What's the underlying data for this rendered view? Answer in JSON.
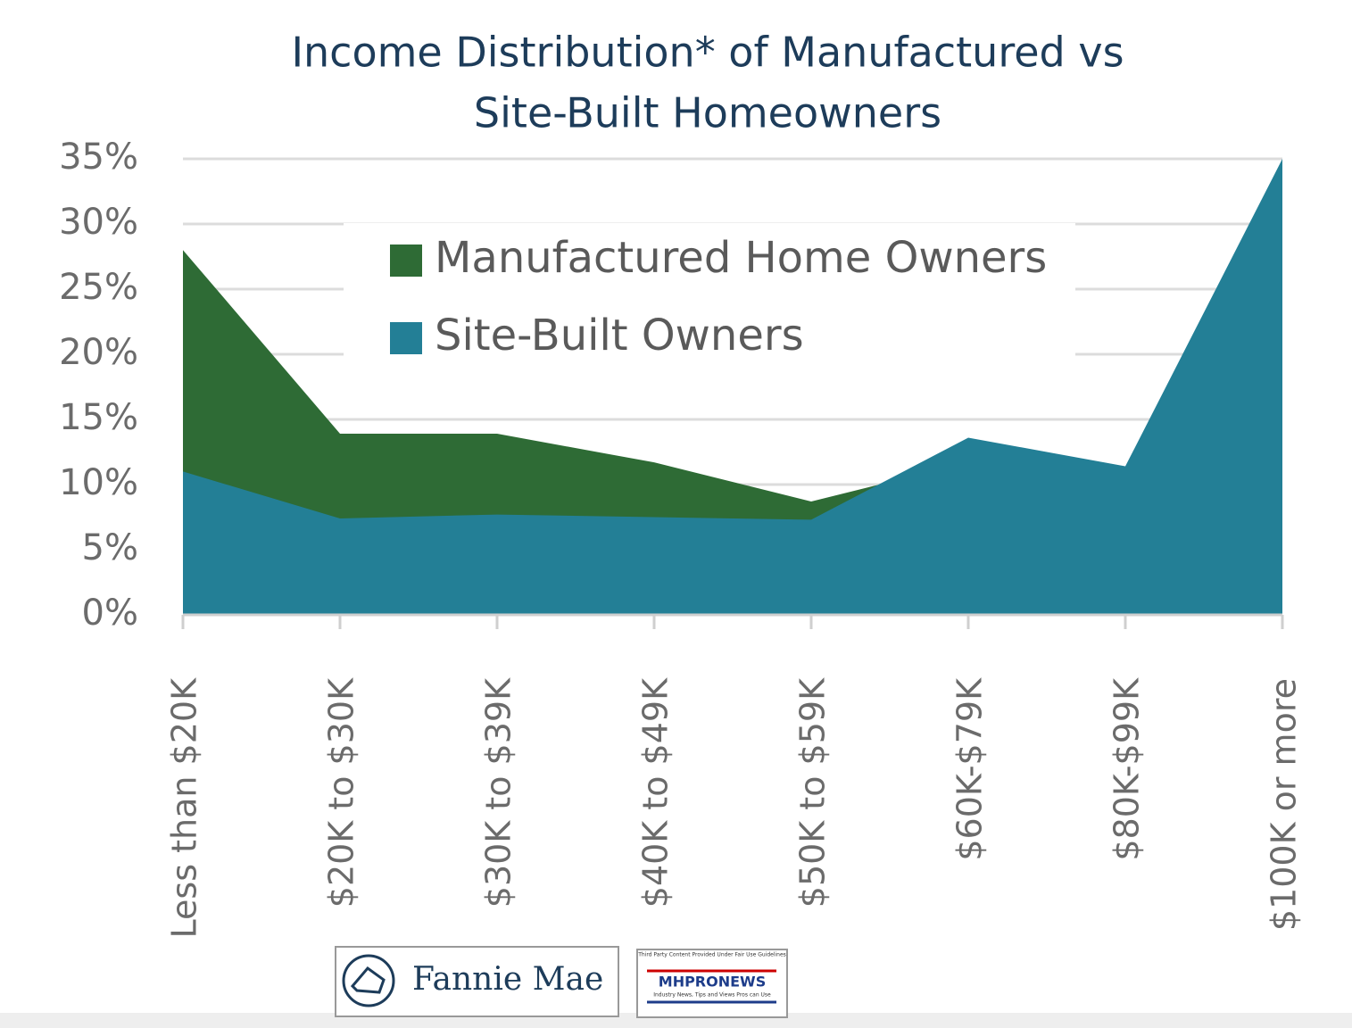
{
  "chart_data": {
    "type": "area",
    "title": [
      "Income Distribution* of Manufactured vs",
      "Site-Built Homeowners"
    ],
    "categories": [
      "Less than $20K",
      "$20K to $30K",
      "$30K to $39K",
      "$40K to $49K",
      "$50K to $59K",
      "$60K-$79K",
      "$80K-$99K",
      "$100K or more"
    ],
    "series": [
      {
        "name": "Manufactured Home Owners",
        "color": "#2e6b35",
        "values": [
          28,
          13.9,
          13.9,
          11.7,
          8.7,
          11.7,
          10,
          7.9
        ]
      },
      {
        "name": "Site-Built Owners",
        "color": "#237f96",
        "values": [
          11,
          7.4,
          7.7,
          7.5,
          7.3,
          13.6,
          11.4,
          35
        ]
      }
    ],
    "ylim": [
      0,
      35
    ],
    "yticks": [
      {
        "value": 0,
        "label": "0%"
      },
      {
        "value": 5,
        "label": "5%"
      },
      {
        "value": 10,
        "label": "10%"
      },
      {
        "value": 15,
        "label": "15%"
      },
      {
        "value": 20,
        "label": "20%"
      },
      {
        "value": 25,
        "label": "25%"
      },
      {
        "value": 30,
        "label": "30%"
      },
      {
        "value": 35,
        "label": "35%"
      }
    ],
    "grid": true
  },
  "footer_logos": {
    "fannie_mae": "Fannie Mae",
    "mhpro_top": "Third Party Content Provided Under Fair Use Guidelines",
    "mhpro_name": "MHPRONEWS",
    "mhpro_sub": "Industry News, Tips and Views Pros can Use"
  }
}
